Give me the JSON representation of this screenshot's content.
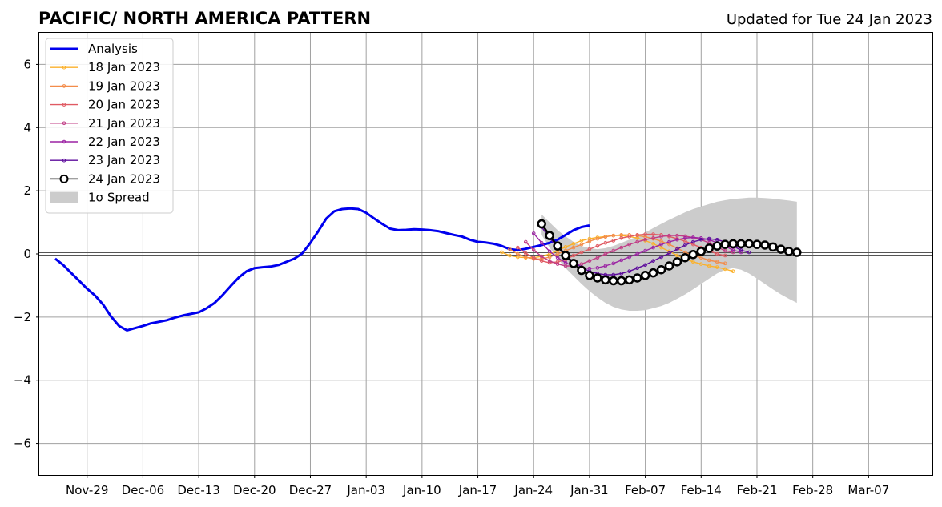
{
  "chart_data": {
    "type": "line",
    "title": "PACIFIC/ NORTH AMERICA PATTERN",
    "subtitle": "Updated for Tue 24 Jan 2023",
    "x_axis": {
      "type": "date",
      "range": [
        "2022-11-23",
        "2023-03-15"
      ],
      "tick_labels": [
        "Nov-29",
        "Dec-06",
        "Dec-13",
        "Dec-20",
        "Dec-27",
        "Jan-03",
        "Jan-10",
        "Jan-17",
        "Jan-24",
        "Jan-31",
        "Feb-07",
        "Feb-14",
        "Feb-21",
        "Feb-28",
        "Mar-07"
      ],
      "tick_dates": [
        "2022-11-29",
        "2022-12-06",
        "2022-12-13",
        "2022-12-20",
        "2022-12-27",
        "2023-01-03",
        "2023-01-10",
        "2023-01-17",
        "2023-01-24",
        "2023-01-31",
        "2023-02-07",
        "2023-02-14",
        "2023-02-21",
        "2023-02-28",
        "2023-03-07"
      ]
    },
    "y_axis": {
      "range": [
        -7,
        7
      ],
      "tick_values": [
        -6,
        -4,
        -2,
        0,
        2,
        4,
        6
      ],
      "tick_labels": [
        "−6",
        "−4",
        "−2",
        "0",
        "2",
        "4",
        "6"
      ]
    },
    "grid": true,
    "legend_position": "top-left",
    "legend": [
      "Analysis",
      "18 Jan 2023",
      "19 Jan 2023",
      "20 Jan 2023",
      "21 Jan 2023",
      "22 Jan 2023",
      "23 Jan 2023",
      "24 Jan 2023",
      "1σ Spread"
    ],
    "analysis": {
      "name": "Analysis",
      "color": "#0000ee",
      "start_date": "2022-11-25",
      "values": [
        -0.15,
        -0.35,
        -0.6,
        -0.85,
        -1.1,
        -1.32,
        -1.6,
        -1.98,
        -2.28,
        -2.42,
        -2.35,
        -2.28,
        -2.2,
        -2.15,
        -2.1,
        -2.02,
        -1.95,
        -1.9,
        -1.85,
        -1.72,
        -1.55,
        -1.3,
        -1.02,
        -0.75,
        -0.55,
        -0.45,
        -0.42,
        -0.4,
        -0.35,
        -0.25,
        -0.15,
        0.02,
        0.35,
        0.72,
        1.12,
        1.35,
        1.42,
        1.44,
        1.42,
        1.3,
        1.12,
        0.95,
        0.8,
        0.75,
        0.76,
        0.78,
        0.77,
        0.75,
        0.72,
        0.66,
        0.6,
        0.55,
        0.45,
        0.38,
        0.36,
        0.32,
        0.25,
        0.15,
        0.12,
        0.16,
        0.22,
        0.28,
        0.35,
        0.45,
        0.6,
        0.75,
        0.85,
        0.9
      ]
    },
    "forecasts": [
      {
        "name": "18 Jan 2023",
        "color": "#fbb12b",
        "start_date": "2023-01-20",
        "values": [
          0.05,
          -0.05,
          -0.1,
          -0.12,
          -0.12,
          -0.08,
          0.0,
          0.1,
          0.22,
          0.32,
          0.42,
          0.48,
          0.52,
          0.55,
          0.58,
          0.58,
          0.55,
          0.5,
          0.42,
          0.32,
          0.2,
          0.08,
          -0.05,
          -0.15,
          -0.25,
          -0.32,
          -0.38,
          -0.42,
          -0.48,
          -0.55
        ]
      },
      {
        "name": "19 Jan 2023",
        "color": "#f38c4a",
        "start_date": "2023-01-21",
        "values": [
          0.15,
          0.0,
          -0.1,
          -0.16,
          -0.16,
          -0.1,
          0.0,
          0.1,
          0.2,
          0.3,
          0.4,
          0.48,
          0.54,
          0.58,
          0.6,
          0.6,
          0.58,
          0.54,
          0.48,
          0.4,
          0.3,
          0.18,
          0.05,
          -0.05,
          -0.12,
          -0.2,
          -0.25,
          -0.3
        ]
      },
      {
        "name": "20 Jan 2023",
        "color": "#e05a63",
        "start_date": "2023-01-22",
        "values": [
          0.2,
          0.02,
          -0.12,
          -0.22,
          -0.28,
          -0.25,
          -0.18,
          -0.05,
          0.05,
          0.15,
          0.25,
          0.35,
          0.42,
          0.5,
          0.55,
          0.6,
          0.62,
          0.62,
          0.6,
          0.55,
          0.48,
          0.4,
          0.3,
          0.2,
          0.1,
          0.0,
          -0.05
        ]
      },
      {
        "name": "21 Jan 2023",
        "color": "#c13c86",
        "start_date": "2023-01-23",
        "values": [
          0.38,
          0.12,
          -0.08,
          -0.22,
          -0.32,
          -0.38,
          -0.38,
          -0.32,
          -0.22,
          -0.12,
          0.0,
          0.1,
          0.2,
          0.3,
          0.38,
          0.45,
          0.5,
          0.55,
          0.58,
          0.58,
          0.56,
          0.52,
          0.45,
          0.35,
          0.22,
          0.1,
          0.05
        ]
      },
      {
        "name": "22 Jan 2023",
        "color": "#9b22a3",
        "start_date": "2023-01-24",
        "values": [
          0.65,
          0.35,
          0.08,
          -0.12,
          -0.28,
          -0.38,
          -0.44,
          -0.46,
          -0.44,
          -0.38,
          -0.3,
          -0.2,
          -0.1,
          0.0,
          0.1,
          0.2,
          0.3,
          0.38,
          0.45,
          0.5,
          0.52,
          0.5,
          0.45,
          0.35,
          0.25,
          0.12,
          0.05
        ]
      },
      {
        "name": "23 Jan 2023",
        "color": "#5d0b9c",
        "start_date": "2023-01-25",
        "values": [
          0.85,
          0.5,
          0.2,
          -0.05,
          -0.25,
          -0.42,
          -0.55,
          -0.62,
          -0.66,
          -0.66,
          -0.62,
          -0.55,
          -0.45,
          -0.35,
          -0.22,
          -0.1,
          0.02,
          0.15,
          0.28,
          0.38,
          0.45,
          0.48,
          0.45,
          0.38,
          0.25,
          0.12,
          0.05
        ]
      }
    ],
    "current_forecast": {
      "name": "24 Jan 2023",
      "color": "#000000",
      "start_date": "2023-01-25",
      "values": [
        0.95,
        0.58,
        0.25,
        -0.05,
        -0.3,
        -0.52,
        -0.68,
        -0.76,
        -0.82,
        -0.85,
        -0.85,
        -0.82,
        -0.76,
        -0.68,
        -0.6,
        -0.5,
        -0.38,
        -0.25,
        -0.12,
        -0.02,
        0.08,
        0.18,
        0.25,
        0.3,
        0.32,
        0.32,
        0.32,
        0.3,
        0.28,
        0.22,
        0.15,
        0.08,
        0.05
      ]
    },
    "spread": {
      "name": "1σ Spread",
      "color": "#cccccc",
      "start_date": "2023-01-25",
      "upper": [
        1.25,
        1.0,
        0.75,
        0.55,
        0.38,
        0.25,
        0.18,
        0.15,
        0.18,
        0.25,
        0.35,
        0.45,
        0.55,
        0.68,
        0.82,
        0.95,
        1.08,
        1.2,
        1.32,
        1.42,
        1.5,
        1.58,
        1.65,
        1.7,
        1.74,
        1.76,
        1.78,
        1.78,
        1.77,
        1.75,
        1.72,
        1.69,
        1.65
      ],
      "lower": [
        0.6,
        0.2,
        -0.15,
        -0.45,
        -0.7,
        -0.95,
        -1.18,
        -1.38,
        -1.55,
        -1.68,
        -1.76,
        -1.8,
        -1.8,
        -1.78,
        -1.72,
        -1.65,
        -1.55,
        -1.42,
        -1.28,
        -1.12,
        -0.95,
        -0.78,
        -0.62,
        -0.5,
        -0.45,
        -0.5,
        -0.62,
        -0.78,
        -0.95,
        -1.12,
        -1.28,
        -1.42,
        -1.55
      ]
    }
  }
}
